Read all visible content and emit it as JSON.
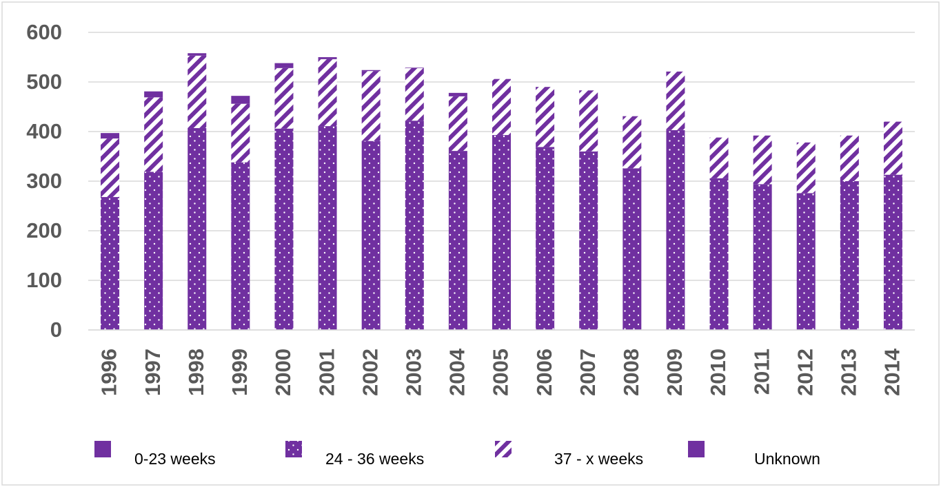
{
  "chart_data": {
    "type": "stacked-bar",
    "categories": [
      "1996",
      "1997",
      "1998",
      "1999",
      "2000",
      "2001",
      "2002",
      "2003",
      "2004",
      "2005",
      "2006",
      "2007",
      "2008",
      "2009",
      "2010",
      "2011",
      "2012",
      "2013",
      "2014"
    ],
    "series": [
      {
        "name": "0-23 weeks",
        "color": "#7030a0",
        "pattern": "solid",
        "values": [
          0,
          0,
          0,
          0,
          0,
          0,
          0,
          0,
          0,
          0,
          0,
          0,
          0,
          0,
          0,
          0,
          0,
          0,
          0
        ]
      },
      {
        "name": "24 - 36 weeks",
        "color": "#7030a0",
        "pattern": "dots",
        "values": [
          268,
          319,
          407,
          338,
          406,
          411,
          381,
          422,
          361,
          393,
          369,
          360,
          326,
          403,
          306,
          294,
          276,
          300,
          313
        ]
      },
      {
        "name": "37 - x weeks",
        "color": "#7030a0",
        "pattern": "stripes",
        "values": [
          118,
          150,
          146,
          118,
          122,
          135,
          141,
          106,
          110,
          113,
          121,
          123,
          105,
          118,
          82,
          98,
          102,
          92,
          107
        ]
      },
      {
        "name": "Unknown",
        "color": "#7030a0",
        "pattern": "solid",
        "values": [
          11,
          12,
          5,
          16,
          10,
          4,
          2,
          1,
          7,
          0,
          0,
          0,
          0,
          0,
          0,
          0,
          0,
          0,
          0
        ]
      }
    ],
    "ylim": [
      0,
      600
    ],
    "yticks": [
      0,
      100,
      200,
      300,
      400,
      500,
      600
    ],
    "grid": true,
    "legend": "bottom"
  }
}
